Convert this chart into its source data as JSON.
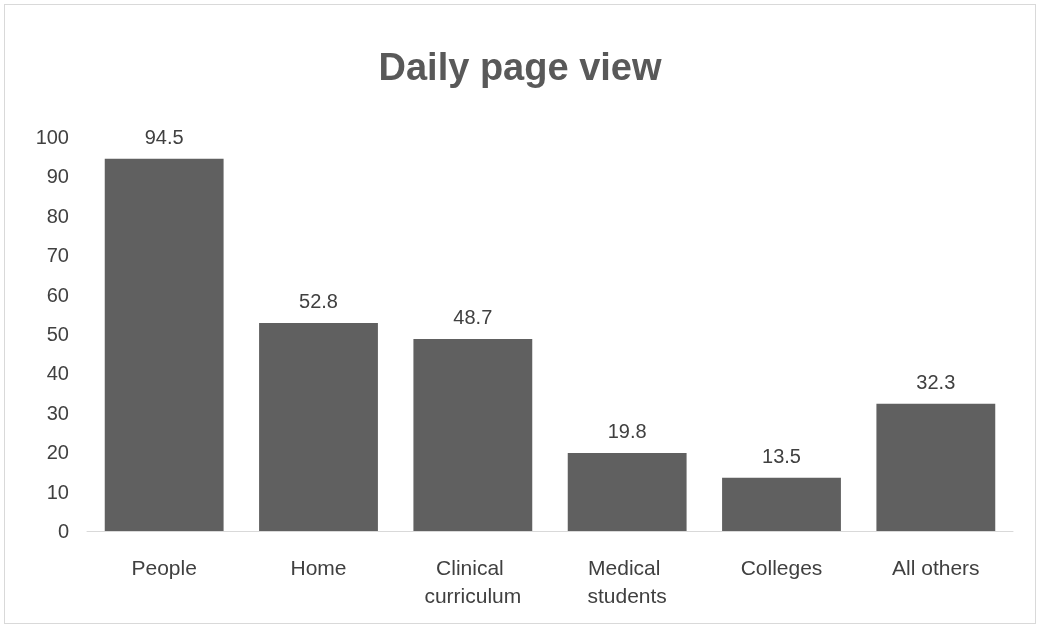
{
  "chart_data": {
    "type": "bar",
    "title": "Daily page view",
    "categories": [
      "People",
      "Home",
      "Clinical curriculum",
      "Medical students",
      "Colleges",
      "All others"
    ],
    "values": [
      94.5,
      52.8,
      48.7,
      19.8,
      13.5,
      32.3
    ],
    "color": "#606060",
    "ylim": [
      0,
      100
    ],
    "yticks": [
      0,
      10,
      20,
      30,
      40,
      50,
      60,
      70,
      80,
      90,
      100
    ],
    "grid": false,
    "data_labels": true
  }
}
